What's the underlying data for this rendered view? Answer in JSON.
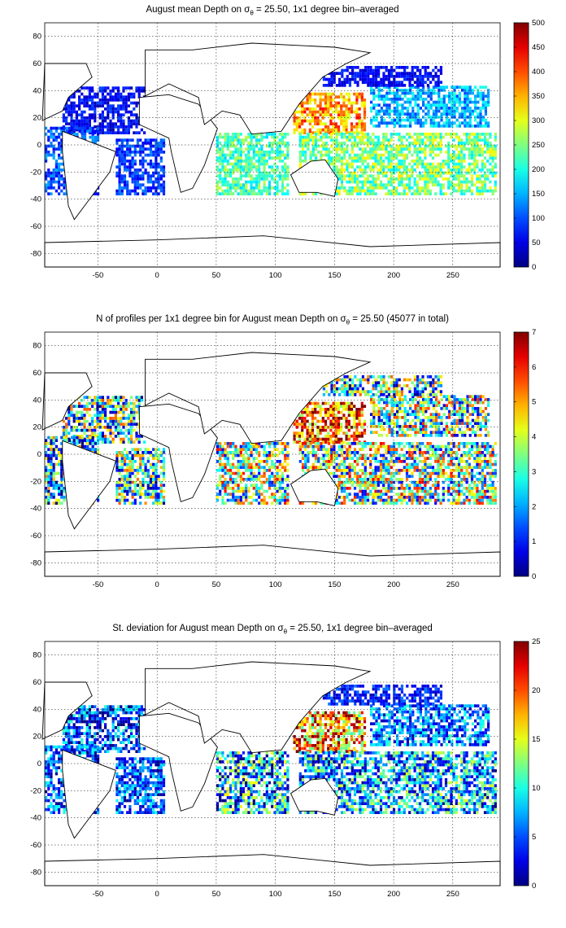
{
  "panels": [
    {
      "title_pre": "August mean Depth on ",
      "title_sym": "σ",
      "title_sub": "θ",
      "title_post": " = 25.50, 1x1 degree bin–averaged",
      "chart_data": {
        "type": "heatmap",
        "x_ticks": [
          -50,
          0,
          50,
          100,
          150,
          200,
          250
        ],
        "y_ticks": [
          80,
          60,
          40,
          20,
          0,
          -20,
          -40,
          -60,
          -80
        ],
        "xlim": [
          -95,
          290
        ],
        "ylim": [
          -90,
          90
        ],
        "colorbar": {
          "min": 0,
          "max": 500,
          "ticks": [
            0,
            50,
            100,
            150,
            200,
            250,
            300,
            350,
            400,
            450,
            500
          ]
        },
        "grid": true,
        "colormap": "jet"
      }
    },
    {
      "title_pre": "N of profiles per 1x1 degree bin for August mean Depth on ",
      "title_sym": "σ",
      "title_sub": "θ",
      "title_post": " = 25.50 (45077 in total)",
      "chart_data": {
        "type": "heatmap",
        "x_ticks": [
          -50,
          0,
          50,
          100,
          150,
          200,
          250
        ],
        "y_ticks": [
          80,
          60,
          40,
          20,
          0,
          -20,
          -40,
          -60,
          -80
        ],
        "xlim": [
          -95,
          290
        ],
        "ylim": [
          -90,
          90
        ],
        "colorbar": {
          "min": 0,
          "max": 7,
          "ticks": [
            0,
            1,
            2,
            3,
            4,
            5,
            6,
            7
          ]
        },
        "grid": true,
        "colormap": "jet"
      }
    },
    {
      "title_pre": "St. deviation for August mean Depth on ",
      "title_sym": "σ",
      "title_sub": "θ",
      "title_post": " = 25.50, 1x1 degree bin–averaged",
      "chart_data": {
        "type": "heatmap",
        "x_ticks": [
          -50,
          0,
          50,
          100,
          150,
          200,
          250
        ],
        "y_ticks": [
          80,
          60,
          40,
          20,
          0,
          -20,
          -40,
          -60,
          -80
        ],
        "xlim": [
          -95,
          290
        ],
        "ylim": [
          -90,
          90
        ],
        "colorbar": {
          "min": 0,
          "max": 25,
          "ticks": [
            0,
            5,
            10,
            15,
            20,
            25
          ]
        },
        "grid": true,
        "colormap": "jet"
      }
    }
  ]
}
